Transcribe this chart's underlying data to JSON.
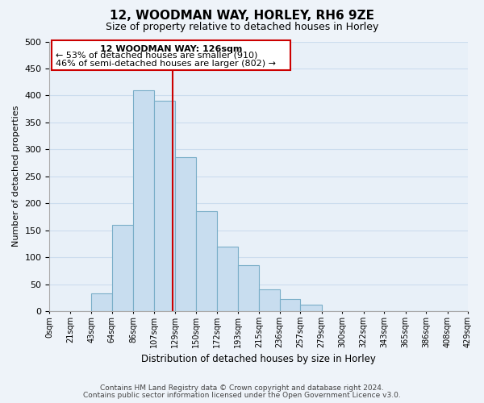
{
  "title": "12, WOODMAN WAY, HORLEY, RH6 9ZE",
  "subtitle": "Size of property relative to detached houses in Horley",
  "xlabel": "Distribution of detached houses by size in Horley",
  "ylabel": "Number of detached properties",
  "bin_edges": [
    0,
    21,
    43,
    64,
    86,
    107,
    129,
    150,
    172,
    193,
    215,
    236,
    257,
    279,
    300,
    322,
    343,
    365,
    386,
    408,
    429
  ],
  "bin_counts": [
    0,
    0,
    33,
    160,
    410,
    390,
    285,
    185,
    120,
    85,
    40,
    22,
    12,
    0,
    0,
    0,
    0,
    0,
    0,
    0
  ],
  "bar_color": "#c8ddef",
  "bar_edge_color": "#7aaec8",
  "grid_color": "#ccddee",
  "vline_x": 126,
  "vline_color": "#cc0000",
  "ylim": [
    0,
    500
  ],
  "tick_labels": [
    "0sqm",
    "21sqm",
    "43sqm",
    "64sqm",
    "86sqm",
    "107sqm",
    "129sqm",
    "150sqm",
    "172sqm",
    "193sqm",
    "215sqm",
    "236sqm",
    "257sqm",
    "279sqm",
    "300sqm",
    "322sqm",
    "343sqm",
    "365sqm",
    "386sqm",
    "408sqm",
    "429sqm"
  ],
  "ann_line1": "12 WOODMAN WAY: 126sqm",
  "ann_line2": "← 53% of detached houses are smaller (910)",
  "ann_line3": "46% of semi-detached houses are larger (802) →",
  "footer_line1": "Contains HM Land Registry data © Crown copyright and database right 2024.",
  "footer_line2": "Contains public sector information licensed under the Open Government Licence v3.0.",
  "bg_color": "#eef3f9",
  "plot_bg_color": "#e8f0f8"
}
